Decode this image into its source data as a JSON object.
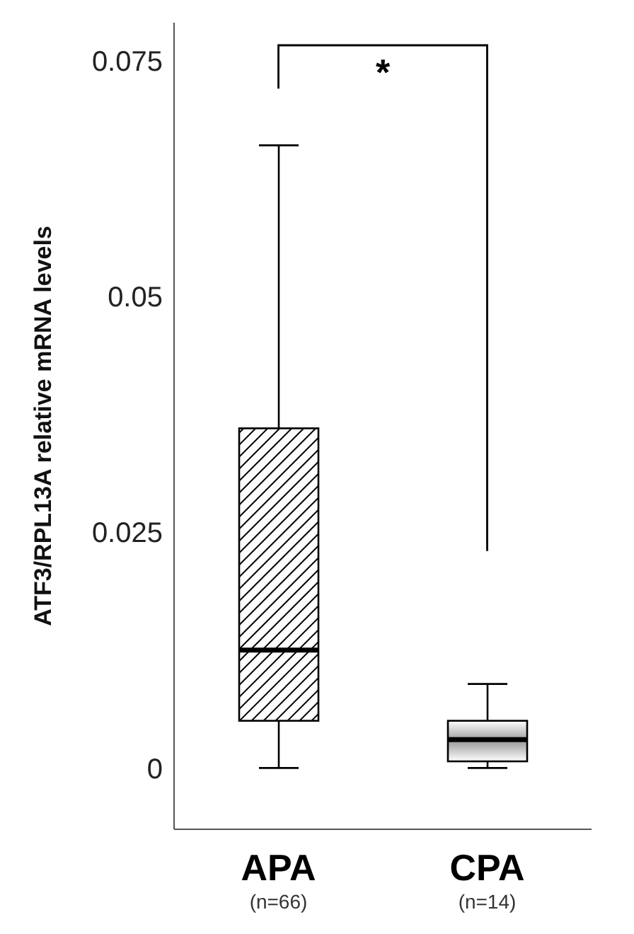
{
  "chart_data": {
    "type": "box",
    "categories": [
      "APA\n(n=66)",
      "CPA\n(n=14)"
    ],
    "ylabel": "ATF3/RPL13A relative mRNA levels",
    "ylim": [
      -0.0065,
      0.079
    ],
    "yticks": [
      0,
      0.025,
      0.05,
      0.075
    ],
    "grid": false,
    "colors": [
      "#000000",
      "#000000"
    ],
    "boxes": [
      {
        "low": 0,
        "q1": 0.005,
        "median": 0.0125,
        "q3": 0.036,
        "high": 0.066
      },
      {
        "low": 0,
        "q1": 0.0007,
        "median": 0.003,
        "q3": 0.005,
        "high": 0.0089
      }
    ],
    "annotations": [
      "*"
    ]
  }
}
